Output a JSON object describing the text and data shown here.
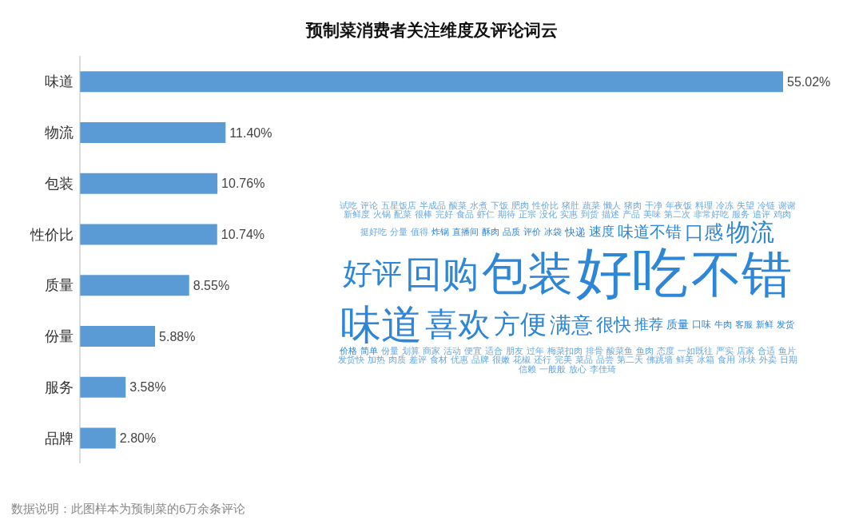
{
  "chart_data": [
    {
      "type": "bar",
      "title": "预制菜消费者关注维度及评论词云",
      "orientation": "horizontal",
      "categories": [
        "味道",
        "物流",
        "包装",
        "性价比",
        "质量",
        "份量",
        "服务",
        "品牌"
      ],
      "values": [
        55.02,
        11.4,
        10.76,
        10.74,
        8.55,
        5.88,
        3.58,
        2.8
      ],
      "value_labels": [
        "55.02%",
        "11.40%",
        "10.76%",
        "10.74%",
        "8.55%",
        "5.88%",
        "3.58%",
        "2.80%"
      ],
      "color": "#5b9bd5",
      "tick_labels": "y",
      "annotations": [
        "数据说明：此图样本为预制菜的6万余条评论"
      ]
    },
    {
      "type": "other",
      "annotations": [
        "好吃",
        "不错",
        "包装",
        "味道",
        "回购",
        "喜欢",
        "好评",
        "方便",
        "物流",
        "满意",
        "口感",
        "很快",
        "味道不错",
        "推荐",
        "速度",
        "质量",
        "快递",
        "口味",
        "冰袋",
        "牛肉",
        "评价",
        "客服",
        "品质",
        "新鲜",
        "酥肉",
        "发货",
        "直播间",
        "价格",
        "炸锅",
        "简单",
        "值得",
        "份量",
        "分量",
        "划算",
        "挺好吃",
        "商家",
        "鸡肉",
        "活动",
        "追评",
        "便宜",
        "服务",
        "适合",
        "非常好吃",
        "朋友",
        "第二次",
        "过年",
        "美味",
        "梅菜扣肉",
        "产品",
        "排骨",
        "描述",
        "酸菜鱼",
        "到货",
        "鱼肉",
        "实惠",
        "态度",
        "没化",
        "一如既往",
        "正宗",
        "严实",
        "期待",
        "店家",
        "虾仁",
        "合适",
        "食品",
        "鱼片",
        "完好",
        "发货快",
        "很棒",
        "加热",
        "配菜",
        "肉质",
        "火锅",
        "差评",
        "新鲜度",
        "食材",
        "谢谢",
        "优惠",
        "冷链",
        "品牌",
        "失望",
        "很嫩",
        "冷冻",
        "花椒",
        "料理",
        "还行",
        "年夜饭",
        "完美",
        "干净",
        "菜品",
        "猪肉",
        "品尝",
        "懒人",
        "第二天",
        "蔬菜",
        "佛跳墙",
        "猪肚",
        "鲜美",
        "性价比",
        "冰箱",
        "肥肉",
        "食用",
        "下饭",
        "冰块",
        "水煮",
        "外卖",
        "酸菜",
        "日期",
        "半成品",
        "信赖",
        "五星饭店",
        "一般般",
        "评论",
        "放心",
        "试吃",
        "李佳琦"
      ]
    }
  ]
}
